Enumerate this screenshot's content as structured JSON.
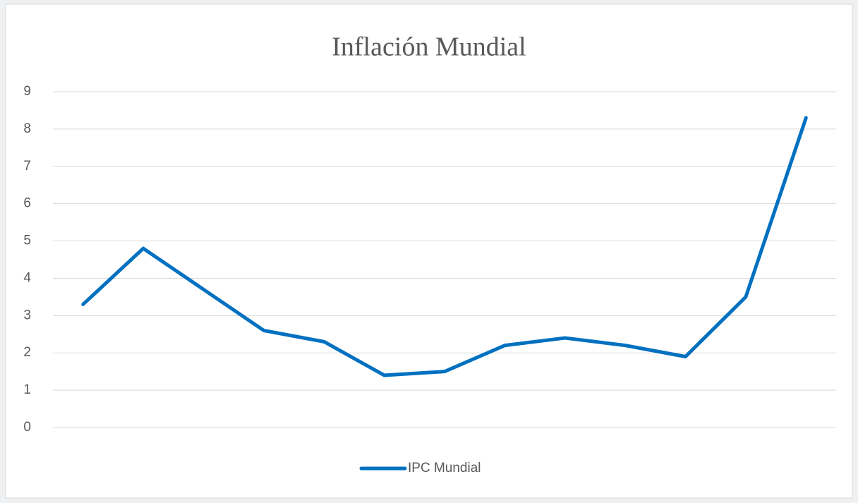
{
  "chart_data": {
    "type": "line",
    "title": "Inflación Mundial",
    "categories": [
      null,
      null,
      null,
      null,
      null,
      null,
      null,
      null,
      null,
      null,
      null,
      null,
      null
    ],
    "series": [
      {
        "name": "IPC Mundial",
        "color": "#0070c0",
        "values": [
          3.3,
          4.8,
          3.7,
          2.6,
          2.3,
          1.4,
          1.5,
          2.2,
          2.4,
          2.2,
          1.9,
          3.5,
          8.3
        ]
      }
    ],
    "ylim": [
      0,
      9
    ],
    "yticks": [
      0,
      1,
      2,
      3,
      4,
      5,
      6,
      7,
      8,
      9
    ],
    "grid": true,
    "legend": "bottom"
  }
}
